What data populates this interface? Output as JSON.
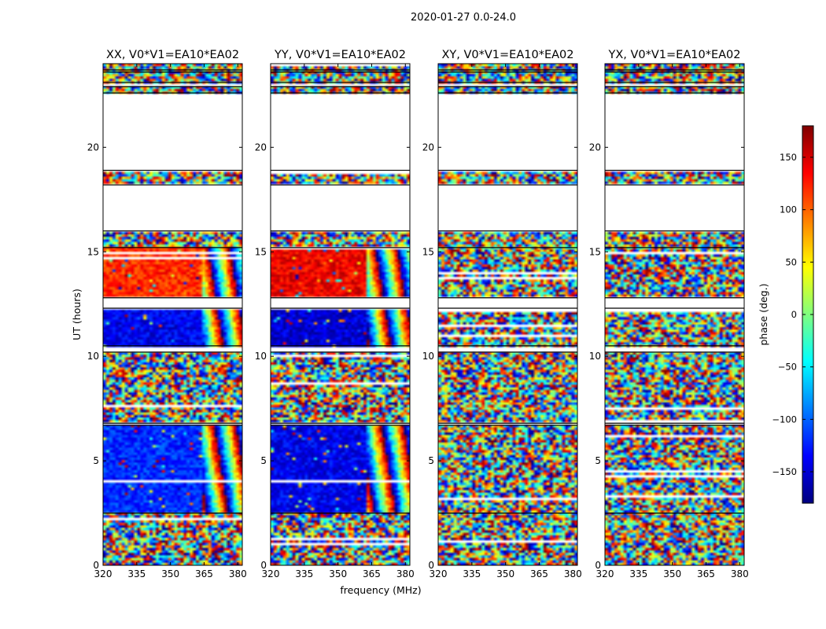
{
  "chart_data": {
    "type": "heatmap",
    "suptitle": "2020-01-27 0.0-24.0",
    "xlabel": "frequency (MHz)",
    "ylabel": "UT (hours)",
    "xlim": [
      320,
      382
    ],
    "ylim": [
      0,
      24
    ],
    "x_ticks": [
      320,
      335,
      350,
      365,
      380
    ],
    "y_ticks": [
      0,
      5,
      10,
      15,
      20
    ],
    "colorbar": {
      "label": "phase (deg.)",
      "range": [
        -180,
        180
      ],
      "ticks": [
        150,
        100,
        50,
        0,
        -50,
        -100,
        -150
      ],
      "tick_labels": [
        "150",
        "100",
        "50",
        "0",
        "−50",
        "−100",
        "−150"
      ],
      "colormap": "jet",
      "colors": [
        "#00007f",
        "#0000ff",
        "#007fff",
        "#00ffff",
        "#7fff7f",
        "#ffff00",
        "#ff7f00",
        "#ff0000",
        "#7f0000"
      ]
    },
    "data_segments_hours": [
      [
        0.0,
        2.5
      ],
      [
        2.5,
        6.7
      ],
      [
        6.8,
        10.2
      ],
      [
        10.5,
        12.3
      ],
      [
        12.8,
        15.2
      ],
      [
        15.2,
        16.0
      ],
      [
        18.2,
        18.9
      ],
      [
        22.6,
        22.9
      ],
      [
        23.1,
        23.6
      ],
      [
        23.7,
        24.0
      ]
    ],
    "panels": [
      {
        "title": "XX, V0*V1=EA10*EA02",
        "pol": "XX",
        "pattern_by_hour": [
          {
            "ut": [
              0.0,
              2.5
            ],
            "mode": "noisy"
          },
          {
            "ut": [
              2.5,
              6.7
            ],
            "mode": "coherent",
            "low_band_phase_deg": -120,
            "high_band_start_mhz": 364
          },
          {
            "ut": [
              6.8,
              10.2
            ],
            "mode": "noisy"
          },
          {
            "ut": [
              10.5,
              12.3
            ],
            "mode": "coherent",
            "low_band_phase_deg": -140,
            "high_band_start_mhz": 364
          },
          {
            "ut": [
              12.8,
              15.2
            ],
            "mode": "coherent",
            "low_band_phase_deg": 120,
            "high_band_start_mhz": 364
          },
          {
            "ut": [
              15.2,
              24.0
            ],
            "mode": "noisy"
          }
        ]
      },
      {
        "title": "YY, V0*V1=EA10*EA02",
        "pol": "YY",
        "pattern_by_hour": [
          {
            "ut": [
              0.0,
              2.5
            ],
            "mode": "noisy"
          },
          {
            "ut": [
              2.5,
              6.7
            ],
            "mode": "coherent",
            "low_band_phase_deg": -140,
            "high_band_start_mhz": 363
          },
          {
            "ut": [
              6.8,
              10.2
            ],
            "mode": "noisy"
          },
          {
            "ut": [
              10.5,
              12.3
            ],
            "mode": "coherent",
            "low_band_phase_deg": -150,
            "high_band_start_mhz": 363
          },
          {
            "ut": [
              12.8,
              15.2
            ],
            "mode": "coherent",
            "low_band_phase_deg": 140,
            "high_band_start_mhz": 363
          },
          {
            "ut": [
              15.2,
              24.0
            ],
            "mode": "noisy"
          }
        ]
      },
      {
        "title": "XY, V0*V1=EA10*EA02",
        "pol": "XY",
        "pattern_by_hour": [
          {
            "ut": [
              0.0,
              24.0
            ],
            "mode": "noisy"
          }
        ]
      },
      {
        "title": "YX, V0*V1=EA10*EA02",
        "pol": "YX",
        "pattern_by_hour": [
          {
            "ut": [
              0.0,
              24.0
            ],
            "mode": "noisy"
          }
        ]
      }
    ]
  }
}
